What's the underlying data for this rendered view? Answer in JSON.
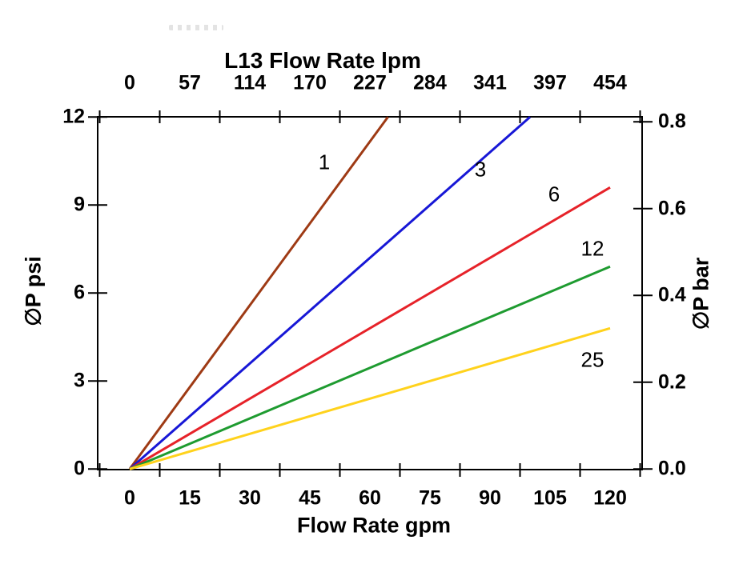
{
  "chart_data": {
    "type": "line",
    "title": "L13 Flow Rate lpm",
    "x_top_axis": {
      "title": "L13 Flow Rate lpm",
      "unit": "lpm",
      "tick_labels": [
        "0",
        "57",
        "114",
        "170",
        "227",
        "284",
        "341",
        "397",
        "454"
      ]
    },
    "x_bottom_axis": {
      "title": "Flow Rate gpm",
      "unit": "gpm",
      "tick_labels": [
        "0",
        "15",
        "30",
        "45",
        "60",
        "75",
        "90",
        "105",
        "120"
      ],
      "range": [
        0,
        120
      ]
    },
    "y_left_axis": {
      "title": "∅P psi",
      "unit": "psi",
      "tick_values": [
        0,
        3,
        6,
        9,
        12
      ],
      "tick_labels": [
        "0",
        "3",
        "6",
        "9",
        "12"
      ],
      "range": [
        0,
        12
      ]
    },
    "y_right_axis": {
      "title": "∅P bar",
      "unit": "bar",
      "tick_labels": [
        "0.0",
        "0.2",
        "0.4",
        "0.6",
        "0.8"
      ],
      "range": [
        0,
        0.8
      ]
    },
    "grid": false,
    "legend": "inline-labels",
    "axis_color": "#000000",
    "series": [
      {
        "name": "1",
        "color": "#9E3A14",
        "points": [
          [
            0,
            0
          ],
          [
            64.5,
            12
          ]
        ],
        "label_at": [
          48.6,
          10.45
        ]
      },
      {
        "name": "3",
        "color": "#1717D6",
        "points": [
          [
            0,
            0
          ],
          [
            100,
            12
          ]
        ],
        "label_at": [
          87.6,
          10.2
        ]
      },
      {
        "name": "6",
        "color": "#E62229",
        "points": [
          [
            0,
            0
          ],
          [
            120,
            9.6
          ]
        ],
        "label_at": [
          106,
          9.35
        ]
      },
      {
        "name": "12",
        "color": "#1E9B30",
        "points": [
          [
            0,
            0
          ],
          [
            120,
            6.9
          ]
        ],
        "label_at": [
          115.6,
          7.5
        ]
      },
      {
        "name": "25",
        "color": "#FFD21C",
        "points": [
          [
            0,
            0
          ],
          [
            120,
            4.8
          ]
        ],
        "label_at": [
          115.6,
          3.73
        ]
      }
    ]
  }
}
